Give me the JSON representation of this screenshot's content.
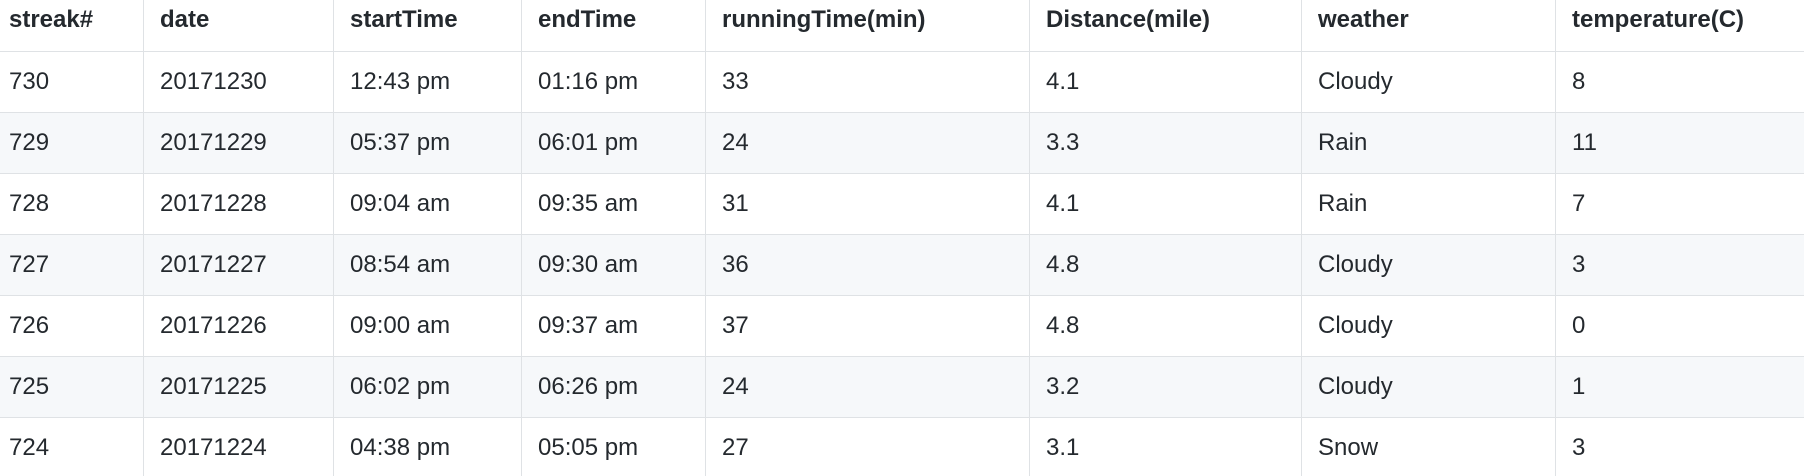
{
  "table": {
    "headers": [
      "streak#",
      "date",
      "startTime",
      "endTime",
      "runningTime(min)",
      "Distance(mile)",
      "weather",
      "temperature(C)"
    ],
    "rows": [
      [
        "730",
        "20171230",
        "12:43 pm",
        "01:16 pm",
        "33",
        "4.1",
        "Cloudy",
        "8"
      ],
      [
        "729",
        "20171229",
        "05:37 pm",
        "06:01 pm",
        "24",
        "3.3",
        "Rain",
        "11"
      ],
      [
        "728",
        "20171228",
        "09:04 am",
        "09:35 am",
        "31",
        "4.1",
        "Rain",
        "7"
      ],
      [
        "727",
        "20171227",
        "08:54 am",
        "09:30 am",
        "36",
        "4.8",
        "Cloudy",
        "3"
      ],
      [
        "726",
        "20171226",
        "09:00 am",
        "09:37 am",
        "37",
        "4.8",
        "Cloudy",
        "0"
      ],
      [
        "725",
        "20171225",
        "06:02 pm",
        "06:26 pm",
        "24",
        "3.2",
        "Cloudy",
        "1"
      ],
      [
        "724",
        "20171224",
        "04:38 pm",
        "05:05 pm",
        "27",
        "3.1",
        "Snow",
        "3"
      ]
    ]
  },
  "colors": {
    "border": "#dfe2e5",
    "stripe": "#f6f8fa",
    "text": "#24292e"
  }
}
